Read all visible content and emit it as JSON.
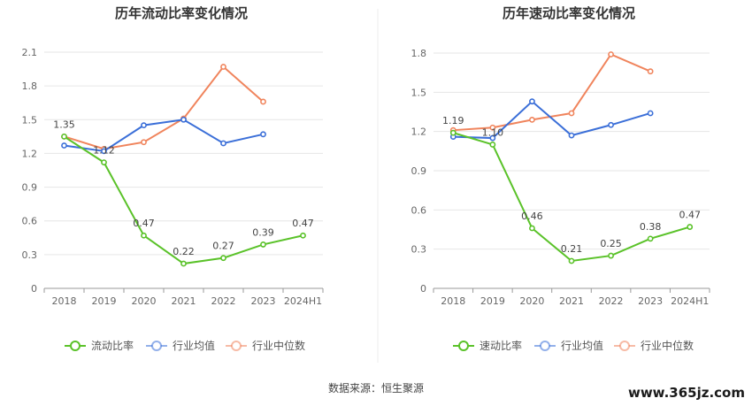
{
  "colors": {
    "current": "#5ac229",
    "avg": "#3b6fd8",
    "median": "#f0845c",
    "grid": "#e6e6e6",
    "axis": "#999999"
  },
  "chart_data": [
    {
      "type": "line",
      "title": "历年流动比率变化情况",
      "categories": [
        "2018",
        "2019",
        "2020",
        "2021",
        "2022",
        "2023",
        "2024H1"
      ],
      "ylim": [
        0,
        2.1
      ],
      "yticks": [
        "0",
        "0.3",
        "0.6",
        "0.9",
        "1.2",
        "1.5",
        "1.8",
        "2.1"
      ],
      "grid": true,
      "legend": "bottom",
      "series": [
        {
          "name": "流动比率",
          "color": "current",
          "values": [
            1.35,
            1.12,
            0.47,
            0.22,
            0.27,
            0.39,
            0.47
          ],
          "labels": [
            "1.35",
            "1.12",
            "0.47",
            "0.22",
            "0.27",
            "0.39",
            "0.47"
          ]
        },
        {
          "name": "行业均值",
          "color": "avg",
          "values": [
            1.27,
            1.22,
            1.45,
            1.5,
            1.29,
            1.37,
            null
          ]
        },
        {
          "name": "行业中位数",
          "color": "median",
          "values": [
            1.35,
            1.24,
            1.3,
            1.51,
            1.97,
            1.66,
            null
          ]
        }
      ]
    },
    {
      "type": "line",
      "title": "历年速动比率变化情况",
      "categories": [
        "2018",
        "2019",
        "2020",
        "2021",
        "2022",
        "2023",
        "2024H1"
      ],
      "ylim": [
        0,
        1.8
      ],
      "yticks": [
        "0",
        "0.3",
        "0.6",
        "0.9",
        "1.2",
        "1.5",
        "1.8"
      ],
      "grid": true,
      "legend": "bottom",
      "series": [
        {
          "name": "速动比率",
          "color": "current",
          "values": [
            1.19,
            1.1,
            0.46,
            0.21,
            0.25,
            0.38,
            0.47
          ],
          "labels": [
            "1.19",
            "1.10",
            "0.46",
            "0.21",
            "0.25",
            "0.38",
            "0.47"
          ]
        },
        {
          "name": "行业均值",
          "color": "avg",
          "values": [
            1.16,
            1.15,
            1.43,
            1.17,
            1.25,
            1.34,
            null
          ]
        },
        {
          "name": "行业中位数",
          "color": "median",
          "values": [
            1.21,
            1.23,
            1.29,
            1.34,
            1.79,
            1.66,
            null
          ]
        }
      ]
    }
  ],
  "footer": {
    "source": "数据来源：恒生聚源",
    "watermark": "www.365jz.com"
  }
}
